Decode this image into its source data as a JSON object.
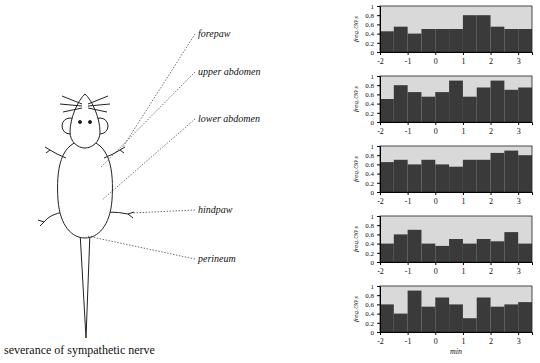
{
  "caption": "severance of sympathetic nerve",
  "chart_data": [
    {
      "type": "histogram",
      "title": "forepaw",
      "y_label": "freq./30 s",
      "bins": [
        -2,
        -1.5,
        -1,
        -0.5,
        0,
        0.5,
        1,
        1.5,
        2,
        2.5,
        3,
        3.5
      ],
      "values": [
        0.45,
        0.55,
        0.4,
        0.5,
        0.5,
        0.5,
        0.8,
        0.8,
        0.55,
        0.5,
        0.5
      ],
      "color": "#3a3a3a",
      "xlim": [
        -2,
        3.5
      ],
      "ylim": [
        0,
        1
      ],
      "xticks": [
        -2,
        -1,
        0,
        1,
        2,
        3
      ],
      "yticks": [
        0,
        0.2,
        0.4,
        0.6,
        0.8,
        1
      ]
    },
    {
      "type": "histogram",
      "title": "upper abdomen",
      "y_label": "freq./30 s",
      "bins": [
        -2,
        -1.5,
        -1,
        -0.5,
        0,
        0.5,
        1,
        1.5,
        2,
        2.5,
        3,
        3.5
      ],
      "values": [
        0.5,
        0.8,
        0.65,
        0.55,
        0.65,
        0.9,
        0.55,
        0.75,
        0.9,
        0.7,
        0.75
      ],
      "color": "#3a3a3a",
      "xlim": [
        -2,
        3.5
      ],
      "ylim": [
        0,
        1
      ],
      "xticks": [
        -2,
        -1,
        0,
        1,
        2,
        3
      ],
      "yticks": [
        0,
        0.2,
        0.4,
        0.6,
        0.8,
        1
      ]
    },
    {
      "type": "histogram",
      "title": "lower abdomen",
      "y_label": "freq./30 s",
      "bins": [
        -2,
        -1.5,
        -1,
        -0.5,
        0,
        0.5,
        1,
        1.5,
        2,
        2.5,
        3,
        3.5
      ],
      "values": [
        0.65,
        0.7,
        0.6,
        0.7,
        0.6,
        0.55,
        0.7,
        0.7,
        0.85,
        0.9,
        0.8
      ],
      "color": "#3a3a3a",
      "xlim": [
        -2,
        3.5
      ],
      "ylim": [
        0,
        1
      ],
      "xticks": [
        -2,
        -1,
        0,
        1,
        2,
        3
      ],
      "yticks": [
        0,
        0.2,
        0.4,
        0.6,
        0.8,
        1
      ]
    },
    {
      "type": "histogram",
      "title": "hindpaw",
      "y_label": "freq./30 s",
      "bins": [
        -2,
        -1.5,
        -1,
        -0.5,
        0,
        0.5,
        1,
        1.5,
        2,
        2.5,
        3,
        3.5
      ],
      "values": [
        0.4,
        0.6,
        0.7,
        0.4,
        0.35,
        0.5,
        0.4,
        0.5,
        0.45,
        0.65,
        0.4
      ],
      "color": "#3a3a3a",
      "xlim": [
        -2,
        3.5
      ],
      "ylim": [
        0,
        1
      ],
      "xticks": [
        -2,
        -1,
        0,
        1,
        2,
        3
      ],
      "yticks": [
        0,
        0.2,
        0.4,
        0.6,
        0.8,
        1
      ]
    },
    {
      "type": "histogram",
      "title": "perineum",
      "y_label": "freq./30 s",
      "x_label": "min",
      "bins": [
        -2,
        -1.5,
        -1,
        -0.5,
        0,
        0.5,
        1,
        1.5,
        2,
        2.5,
        3,
        3.5
      ],
      "values": [
        0.6,
        0.4,
        0.9,
        0.55,
        0.75,
        0.6,
        0.3,
        0.75,
        0.55,
        0.6,
        0.65
      ],
      "color": "#3a3a3a",
      "xlim": [
        -2,
        3.5
      ],
      "ylim": [
        0,
        1
      ],
      "xticks": [
        -2,
        -1,
        0,
        1,
        2,
        3
      ],
      "yticks": [
        0,
        0.2,
        0.4,
        0.6,
        0.8,
        1
      ]
    }
  ]
}
